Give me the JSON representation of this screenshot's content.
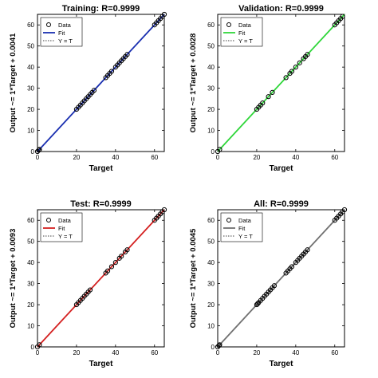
{
  "chart_data": [
    {
      "type": "scatter",
      "title": "Training: R=0.9999",
      "xlabel": "Target",
      "ylabel": "Output ~= 1*Target + 0.0041",
      "xlim": [
        0,
        65
      ],
      "ylim": [
        0,
        65
      ],
      "xticks": [
        0,
        20,
        40,
        60
      ],
      "yticks": [
        0,
        10,
        20,
        30,
        40,
        50,
        60
      ],
      "fit_color": "#1a2fb0",
      "fit": {
        "slope": 1,
        "intercept": 0.0041
      },
      "legend": [
        "Data",
        "Fit",
        "Y = T"
      ],
      "legend_position": "top-left",
      "series": [
        {
          "name": "Data",
          "x": [
            0,
            0.6,
            1,
            20,
            21,
            22,
            23,
            24,
            25,
            26,
            27,
            28,
            29,
            35,
            36,
            37,
            38,
            40,
            41,
            42,
            43,
            44,
            45,
            46,
            60,
            61,
            62,
            63,
            64,
            65
          ],
          "y": [
            0,
            0.6,
            1,
            20,
            21,
            22,
            23,
            24,
            25,
            26,
            27,
            28,
            29,
            35,
            36,
            37,
            38,
            40,
            41,
            42,
            43,
            44,
            45,
            46,
            60,
            61,
            62,
            63,
            64,
            65
          ]
        }
      ]
    },
    {
      "type": "scatter",
      "title": "Validation: R=0.9999",
      "xlabel": "Target",
      "ylabel": "Output ~= 1*Target + 0.0028",
      "xlim": [
        0,
        65
      ],
      "ylim": [
        0,
        65
      ],
      "xticks": [
        0,
        20,
        40,
        60
      ],
      "yticks": [
        0,
        10,
        20,
        30,
        40,
        50,
        60
      ],
      "fit_color": "#2fd63a",
      "fit": {
        "slope": 1,
        "intercept": 0.0028
      },
      "legend": [
        "Data",
        "Fit",
        "Y = T"
      ],
      "legend_position": "top-left",
      "series": [
        {
          "name": "Data",
          "x": [
            0,
            1,
            20,
            21,
            22,
            23,
            26,
            28,
            35,
            37,
            38,
            40,
            42,
            44,
            45,
            46,
            60,
            61,
            62,
            63,
            64
          ],
          "y": [
            0,
            1,
            20,
            21,
            22,
            23,
            26,
            28,
            35,
            37,
            38,
            40,
            42,
            44,
            45,
            46,
            60,
            61,
            62,
            63,
            64
          ]
        }
      ]
    },
    {
      "type": "scatter",
      "title": "Test: R=0.9999",
      "xlabel": "Target",
      "ylabel": "Output ~= 1*Target + 0.0093",
      "xlim": [
        0,
        65
      ],
      "ylim": [
        0,
        65
      ],
      "xticks": [
        0,
        20,
        40,
        60
      ],
      "yticks": [
        0,
        10,
        20,
        30,
        40,
        50,
        60
      ],
      "fit_color": "#d42020",
      "fit": {
        "slope": 1,
        "intercept": 0.0093
      },
      "legend": [
        "Data",
        "Fit",
        "Y = T"
      ],
      "legend_position": "top-left",
      "series": [
        {
          "name": "Data",
          "x": [
            0,
            1,
            20,
            21,
            22,
            23,
            24,
            25,
            26,
            27,
            35,
            36,
            38,
            40,
            42,
            43,
            45,
            46,
            60,
            61,
            62,
            63,
            64,
            65
          ],
          "y": [
            0,
            1,
            20,
            21,
            22,
            23,
            24,
            25,
            26,
            27,
            35,
            36,
            38,
            40,
            42,
            43,
            45,
            46,
            60,
            61,
            62,
            63,
            64,
            65
          ]
        }
      ]
    },
    {
      "type": "scatter",
      "title": "All: R=0.9999",
      "xlabel": "Target",
      "ylabel": "Output ~= 1*Target + 0.0045",
      "xlim": [
        0,
        65
      ],
      "ylim": [
        0,
        65
      ],
      "xticks": [
        0,
        20,
        40,
        60
      ],
      "yticks": [
        0,
        10,
        20,
        30,
        40,
        50,
        60
      ],
      "fit_color": "#707070",
      "fit": {
        "slope": 1,
        "intercept": 0.0045
      },
      "legend": [
        "Data",
        "Fit",
        "Y = T"
      ],
      "legend_position": "top-left",
      "series": [
        {
          "name": "Data",
          "x": [
            0,
            0.6,
            1,
            20,
            20.5,
            21,
            22,
            23,
            24,
            25,
            26,
            27,
            28,
            29,
            35,
            36,
            37,
            38,
            40,
            41,
            42,
            43,
            44,
            45,
            46,
            60,
            61,
            62,
            63,
            64,
            65
          ],
          "y": [
            0,
            0.6,
            1,
            20,
            20.5,
            21,
            22,
            23,
            24,
            25,
            26,
            27,
            28,
            29,
            35,
            36,
            37,
            38,
            40,
            41,
            42,
            43,
            44,
            45,
            46,
            60,
            61,
            62,
            63,
            64,
            65
          ]
        }
      ]
    }
  ]
}
